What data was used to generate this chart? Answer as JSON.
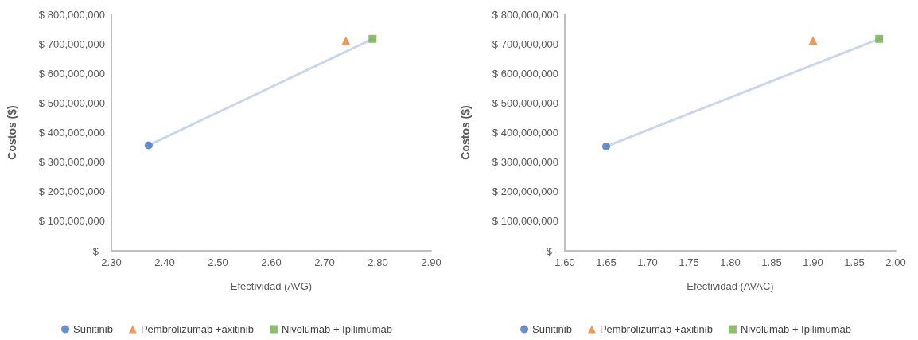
{
  "chart_data": [
    {
      "type": "scatter",
      "xlabel": "Efectividad (AVG)",
      "ylabel": "Costos ($)",
      "xlim": [
        2.3,
        2.9
      ],
      "xticks": [
        {
          "value": 2.3,
          "label": "2.30"
        },
        {
          "value": 2.4,
          "label": "2.40"
        },
        {
          "value": 2.5,
          "label": "2.50"
        },
        {
          "value": 2.6,
          "label": "2.60"
        },
        {
          "value": 2.7,
          "label": "2.70"
        },
        {
          "value": 2.8,
          "label": "2.80"
        },
        {
          "value": 2.9,
          "label": "2.90"
        }
      ],
      "ylim": [
        0,
        800000000
      ],
      "yticks": [
        {
          "value": 0,
          "label": "$ -"
        },
        {
          "value": 100000000,
          "label": "$ 100,000,000"
        },
        {
          "value": 200000000,
          "label": "$ 200,000,000"
        },
        {
          "value": 300000000,
          "label": "$ 300,000,000"
        },
        {
          "value": 400000000,
          "label": "$ 400,000,000"
        },
        {
          "value": 500000000,
          "label": "$ 500,000,000"
        },
        {
          "value": 600000000,
          "label": "$ 600,000,000"
        },
        {
          "value": 700000000,
          "label": "$ 700,000,000"
        },
        {
          "value": 800000000,
          "label": "$ 800,000,000"
        }
      ],
      "grid": false,
      "legend": "bottom",
      "series": [
        {
          "type": "line",
          "color": "#c9d6ee",
          "marker": "none",
          "x": [
            2.37,
            2.79
          ],
          "values": [
            357000000,
            717000000
          ]
        },
        {
          "name": "Sunitinib",
          "color": "#4472c4",
          "marker": "circle",
          "x": [
            2.37
          ],
          "values": [
            357000000
          ]
        },
        {
          "name": "Pembrolizumab +axitinib",
          "color": "#ed7d31",
          "marker": "triangle",
          "x": [
            2.74
          ],
          "values": [
            711000000
          ]
        },
        {
          "name": "Nivolumab + Ipilimumab",
          "color": "#70ad47",
          "marker": "square",
          "x": [
            2.79
          ],
          "values": [
            717000000
          ]
        }
      ]
    },
    {
      "type": "scatter",
      "xlabel": "Efectividad (AVAC)",
      "ylabel": "Costos ($)",
      "xlim": [
        1.6,
        2.0
      ],
      "xticks": [
        {
          "value": 1.6,
          "label": "1.60"
        },
        {
          "value": 1.65,
          "label": "1.65"
        },
        {
          "value": 1.7,
          "label": "1.70"
        },
        {
          "value": 1.75,
          "label": "1.75"
        },
        {
          "value": 1.8,
          "label": "1.80"
        },
        {
          "value": 1.85,
          "label": "1.85"
        },
        {
          "value": 1.9,
          "label": "1.90"
        },
        {
          "value": 1.95,
          "label": "1.95"
        },
        {
          "value": 2.0,
          "label": "2.00"
        }
      ],
      "ylim": [
        0,
        800000000
      ],
      "yticks": [
        {
          "value": 0,
          "label": "$ -"
        },
        {
          "value": 100000000,
          "label": "$ 100,000,000"
        },
        {
          "value": 200000000,
          "label": "$ 200,000,000"
        },
        {
          "value": 300000000,
          "label": "$ 300,000,000"
        },
        {
          "value": 400000000,
          "label": "$ 400,000,000"
        },
        {
          "value": 500000000,
          "label": "$ 500,000,000"
        },
        {
          "value": 600000000,
          "label": "$ 600,000,000"
        },
        {
          "value": 700000000,
          "label": "$ 700,000,000"
        },
        {
          "value": 800000000,
          "label": "$ 800,000,000"
        }
      ],
      "grid": false,
      "legend": "bottom",
      "series": [
        {
          "type": "line",
          "color": "#c9d6ee",
          "marker": "none",
          "x": [
            1.65,
            1.98
          ],
          "values": [
            353000000,
            717000000
          ]
        },
        {
          "name": "Sunitinib",
          "color": "#4472c4",
          "marker": "circle",
          "x": [
            1.65
          ],
          "values": [
            353000000
          ]
        },
        {
          "name": "Pembrolizumab +axitinib",
          "color": "#ed7d31",
          "marker": "triangle",
          "x": [
            1.9
          ],
          "values": [
            712000000
          ]
        },
        {
          "name": "Nivolumab + Ipilimumab",
          "color": "#70ad47",
          "marker": "square",
          "x": [
            1.98
          ],
          "values": [
            717000000
          ]
        }
      ]
    }
  ]
}
